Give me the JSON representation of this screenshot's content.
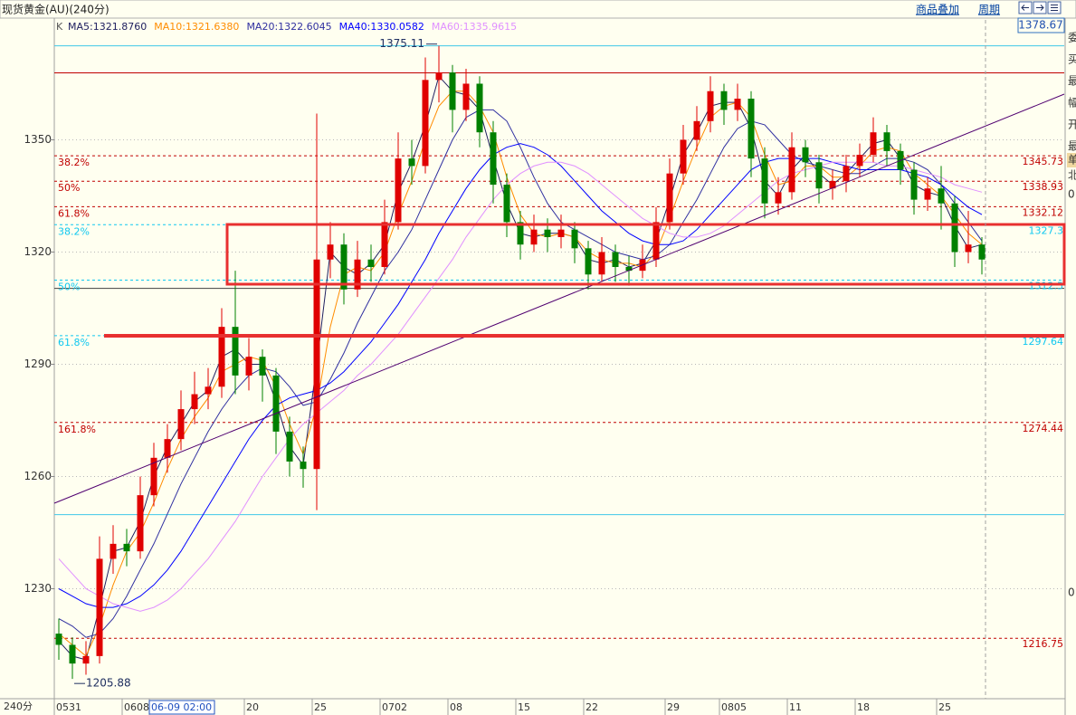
{
  "header": {
    "title": "现货黄金(AU)(240分)",
    "overlay": "商品叠加",
    "period": "周期",
    "price_box": 1378.67
  },
  "side_panel": [
    "委",
    "买",
    "最",
    "幅",
    "开",
    "最",
    "单",
    "北",
    "0",
    "0"
  ],
  "chart_data": {
    "type": "candlestick",
    "legend_prefix": "K",
    "x_unit_label": "240分",
    "categories": [
      "0531",
      null,
      null,
      null,
      null,
      "0608",
      null,
      "06-09 02:00",
      null,
      null,
      null,
      null,
      null,
      null,
      "20",
      null,
      null,
      null,
      null,
      "25",
      null,
      null,
      null,
      null,
      "0702",
      null,
      null,
      null,
      null,
      "08",
      null,
      null,
      null,
      null,
      "15",
      null,
      null,
      null,
      null,
      "22",
      null,
      null,
      null,
      null,
      null,
      "29",
      null,
      null,
      null,
      "0805",
      null,
      null,
      null,
      null,
      "11",
      null,
      null,
      null,
      null,
      "18",
      null,
      null,
      null,
      null,
      null,
      "25",
      null,
      null,
      null
    ],
    "candles": [
      [
        1218,
        1222,
        1211,
        1215
      ],
      [
        1215,
        1217,
        1205.88,
        1210
      ],
      [
        1210,
        1216,
        1207,
        1212
      ],
      [
        1212,
        1244,
        1210,
        1238
      ],
      [
        1238,
        1247,
        1234,
        1242
      ],
      [
        1242,
        1246,
        1236,
        1240
      ],
      [
        1240,
        1260,
        1238,
        1255
      ],
      [
        1255,
        1269,
        1252,
        1265
      ],
      [
        1265,
        1274,
        1261,
        1270
      ],
      [
        1270,
        1283,
        1267,
        1278
      ],
      [
        1278,
        1288,
        1274,
        1282
      ],
      [
        1282,
        1289,
        1278,
        1284
      ],
      [
        1284,
        1305,
        1281,
        1300
      ],
      [
        1300,
        1315,
        1282,
        1287
      ],
      [
        1287,
        1297,
        1283,
        1292
      ],
      [
        1292,
        1294,
        1280,
        1287
      ],
      [
        1287,
        1289,
        1266,
        1272
      ],
      [
        1272,
        1276,
        1260,
        1264
      ],
      [
        1264,
        1268,
        1257,
        1262
      ],
      [
        1262,
        1357,
        1251,
        1318
      ],
      [
        1318,
        1328,
        1313,
        1322
      ],
      [
        1322,
        1325,
        1306,
        1310
      ],
      [
        1310,
        1323,
        1308,
        1318
      ],
      [
        1318,
        1322,
        1312,
        1316
      ],
      [
        1316,
        1334,
        1314,
        1328
      ],
      [
        1328,
        1352,
        1326,
        1345
      ],
      [
        1345,
        1350,
        1338,
        1343
      ],
      [
        1343,
        1372,
        1341,
        1366
      ],
      [
        1366,
        1375.11,
        1360,
        1368
      ],
      [
        1368,
        1370,
        1352,
        1358
      ],
      [
        1358,
        1369,
        1355,
        1365
      ],
      [
        1365,
        1367,
        1348,
        1352
      ],
      [
        1352,
        1355,
        1333,
        1338
      ],
      [
        1338,
        1341,
        1324,
        1328
      ],
      [
        1328,
        1331,
        1318,
        1322
      ],
      [
        1322,
        1330,
        1320,
        1326
      ],
      [
        1326,
        1329,
        1320,
        1324
      ],
      [
        1324,
        1330,
        1321,
        1326
      ],
      [
        1326,
        1328,
        1317,
        1321
      ],
      [
        1321,
        1323,
        1310,
        1314
      ],
      [
        1314,
        1324,
        1312,
        1320
      ],
      [
        1320,
        1322,
        1312,
        1316
      ],
      [
        1316,
        1319,
        1311,
        1315
      ],
      [
        1315,
        1322,
        1313,
        1318
      ],
      [
        1318,
        1332,
        1316,
        1328
      ],
      [
        1328,
        1345,
        1326,
        1341
      ],
      [
        1341,
        1354,
        1338,
        1350
      ],
      [
        1350,
        1359,
        1347,
        1355
      ],
      [
        1355,
        1367,
        1352,
        1363
      ],
      [
        1363,
        1365,
        1354,
        1358
      ],
      [
        1358,
        1365,
        1355,
        1361
      ],
      [
        1361,
        1363,
        1340,
        1345
      ],
      [
        1345,
        1348,
        1329,
        1333
      ],
      [
        1333,
        1340,
        1330,
        1336
      ],
      [
        1336,
        1352,
        1334,
        1348
      ],
      [
        1348,
        1350,
        1340,
        1344
      ],
      [
        1344,
        1346,
        1333,
        1337
      ],
      [
        1337,
        1342,
        1334,
        1339
      ],
      [
        1339,
        1346,
        1336,
        1343
      ],
      [
        1343,
        1349,
        1340,
        1346
      ],
      [
        1346,
        1356,
        1344,
        1352
      ],
      [
        1352,
        1354,
        1343,
        1347
      ],
      [
        1347,
        1349,
        1338,
        1342
      ],
      [
        1342,
        1344,
        1330,
        1334
      ],
      [
        1334,
        1340,
        1331,
        1337
      ],
      [
        1337,
        1343,
        1326,
        1333
      ],
      [
        1333,
        1335,
        1316,
        1320
      ],
      [
        1320,
        1331,
        1317,
        1322
      ],
      [
        1322,
        1324,
        1314,
        1318
      ]
    ],
    "up_color": "#e00000",
    "down_color": "#008000",
    "series": [
      {
        "name": "MA5:1321.8760",
        "color": "#202060",
        "values": [
          1216,
          1212,
          1211,
          1225,
          1240,
          1241,
          1248,
          1260,
          1268,
          1274,
          1280,
          1283,
          1292,
          1294,
          1290,
          1290,
          1280,
          1268,
          1263,
          1290,
          1320,
          1316,
          1314,
          1317,
          1322,
          1336,
          1344,
          1354,
          1367,
          1363,
          1362,
          1358,
          1345,
          1333,
          1325,
          1324,
          1325,
          1325,
          1324,
          1318,
          1317,
          1318,
          1316,
          1317,
          1323,
          1334,
          1346,
          1352,
          1359,
          1360,
          1360,
          1353,
          1339,
          1335,
          1342,
          1346,
          1341,
          1338,
          1341,
          1345,
          1349,
          1350,
          1345,
          1338,
          1336,
          1335,
          1327,
          1321,
          1322
        ]
      },
      {
        "name": "MA10:1321.6380",
        "color": "#ff8c00",
        "values": [
          1218,
          1215,
          1212,
          1220,
          1231,
          1240,
          1245,
          1253,
          1262,
          1270,
          1276,
          1281,
          1288,
          1290,
          1292,
          1291,
          1284,
          1274,
          1266,
          1279,
          1300,
          1314,
          1316,
          1315,
          1320,
          1330,
          1339,
          1350,
          1359,
          1363,
          1363,
          1359,
          1352,
          1340,
          1330,
          1325,
          1324,
          1325,
          1324,
          1320,
          1318,
          1317,
          1317,
          1316,
          1320,
          1329,
          1339,
          1348,
          1356,
          1359,
          1360,
          1356,
          1346,
          1338,
          1339,
          1343,
          1343,
          1340,
          1340,
          1343,
          1347,
          1348,
          1347,
          1341,
          1338,
          1335,
          1330,
          1325,
          1322
        ]
      },
      {
        "name": "MA20:1322.6045",
        "color": "#3030a0",
        "values": [
          1222,
          1220,
          1217,
          1218,
          1222,
          1228,
          1235,
          1242,
          1250,
          1258,
          1265,
          1272,
          1278,
          1283,
          1287,
          1289,
          1288,
          1284,
          1279,
          1280,
          1286,
          1293,
          1301,
          1308,
          1315,
          1320,
          1326,
          1334,
          1342,
          1350,
          1356,
          1358,
          1358,
          1355,
          1348,
          1340,
          1333,
          1328,
          1326,
          1324,
          1322,
          1320,
          1319,
          1318,
          1319,
          1322,
          1328,
          1334,
          1341,
          1348,
          1353,
          1355,
          1354,
          1350,
          1346,
          1344,
          1343,
          1342,
          1341,
          1341,
          1343,
          1345,
          1345,
          1344,
          1342,
          1338,
          1333,
          1328,
          1323
        ]
      },
      {
        "name": "MA40:1330.0582",
        "color": "#0000ff",
        "values": [
          1230,
          1228,
          1226,
          1225,
          1225,
          1226,
          1228,
          1231,
          1235,
          1240,
          1246,
          1252,
          1258,
          1264,
          1270,
          1275,
          1279,
          1281,
          1282,
          1283,
          1285,
          1288,
          1292,
          1296,
          1301,
          1306,
          1312,
          1318,
          1325,
          1331,
          1337,
          1342,
          1346,
          1348,
          1349,
          1348,
          1346,
          1343,
          1339,
          1335,
          1331,
          1328,
          1325,
          1323,
          1322,
          1322,
          1323,
          1326,
          1330,
          1334,
          1338,
          1342,
          1344,
          1345,
          1345,
          1345,
          1345,
          1344,
          1343,
          1342,
          1342,
          1342,
          1342,
          1341,
          1340,
          1338,
          1335,
          1332,
          1330
        ]
      },
      {
        "name": "MA60:1335.9615",
        "color": "#e090ff",
        "values": [
          1238,
          1234,
          1230,
          1228,
          1226,
          1225,
          1224,
          1225,
          1227,
          1230,
          1234,
          1238,
          1243,
          1248,
          1254,
          1260,
          1265,
          1270,
          1274,
          1277,
          1280,
          1283,
          1287,
          1290,
          1294,
          1298,
          1303,
          1308,
          1313,
          1318,
          1324,
          1329,
          1334,
          1338,
          1341,
          1343,
          1344,
          1344,
          1343,
          1341,
          1338,
          1335,
          1332,
          1329,
          1327,
          1325,
          1324,
          1324,
          1325,
          1327,
          1330,
          1333,
          1336,
          1339,
          1341,
          1342,
          1343,
          1344,
          1344,
          1344,
          1344,
          1343,
          1343,
          1342,
          1341,
          1340,
          1338,
          1337,
          1336
        ]
      }
    ],
    "ylim": [
      1200.6,
      1382.05
    ],
    "yticks": [
      1350,
      1320,
      1290,
      1260,
      1230
    ],
    "grid": true,
    "fib_levels": [
      {
        "label": "38.2%",
        "value": 1345.73,
        "color": "#c00000"
      },
      {
        "label": "50%",
        "value": 1338.93,
        "color": "#c00000"
      },
      {
        "label": "61.8%",
        "value": 1332.12,
        "color": "#c00000"
      },
      {
        "label": "161.8%",
        "value": 1274.44,
        "color": "#c00000"
      },
      {
        "value": 1216.75,
        "color": "#c00000"
      },
      {
        "label": "38.2%",
        "value": 1327.3,
        "color": "#10c8f0"
      },
      {
        "label": "50%",
        "value": 1312.5,
        "color": "#10c8f0"
      },
      {
        "label": "61.8%",
        "value": 1297.64,
        "color": "#10c8f0"
      }
    ],
    "lines": [
      {
        "value": 1375.11,
        "color": "#40c8e8"
      },
      {
        "value": 1249.8,
        "color": "#40c8e8"
      },
      {
        "value": 1367.9,
        "color": "#c00000"
      },
      {
        "value": 1310.3,
        "color": "#404040"
      }
    ],
    "high_label": 1375.11,
    "low_label": 1205.88
  }
}
